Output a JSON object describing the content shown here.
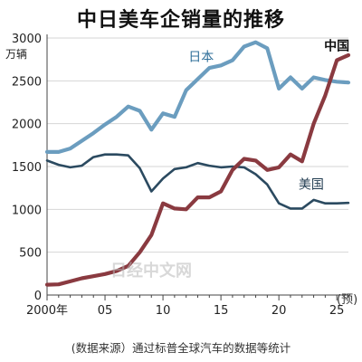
{
  "chart_data": {
    "type": "line",
    "title": "中日美车企销量的推移",
    "ylabel": "万辆",
    "xlabel": "",
    "xlim": [
      2000,
      2026
    ],
    "ylim": [
      0,
      3000
    ],
    "y_ticks": [
      0,
      500,
      1000,
      1500,
      2000,
      2500,
      3000
    ],
    "x_ticks": [
      {
        "value": 2000,
        "label": "2000年"
      },
      {
        "value": 2005,
        "label": "05"
      },
      {
        "value": 2010,
        "label": "10"
      },
      {
        "value": 2015,
        "label": "15"
      },
      {
        "value": 2020,
        "label": "20"
      },
      {
        "value": 2025,
        "label": "25"
      }
    ],
    "grid": "horizontal",
    "annotation": "(预)",
    "series": [
      {
        "name": "日本",
        "color": "#6b9dbf",
        "x": [
          2000,
          2001,
          2002,
          2003,
          2004,
          2005,
          2006,
          2007,
          2008,
          2009,
          2010,
          2011,
          2012,
          2013,
          2014,
          2015,
          2016,
          2017,
          2018,
          2019,
          2020,
          2021,
          2022,
          2023,
          2024,
          2025,
          2026
        ],
        "y": [
          1670,
          1670,
          1710,
          1800,
          1890,
          1990,
          2080,
          2200,
          2150,
          1930,
          2120,
          2080,
          2390,
          2520,
          2650,
          2680,
          2740,
          2900,
          2950,
          2880,
          2410,
          2540,
          2410,
          2540,
          2510,
          2490,
          2480
        ]
      },
      {
        "name": "美国",
        "color": "#2b4a60",
        "x": [
          2000,
          2001,
          2002,
          2003,
          2004,
          2005,
          2006,
          2007,
          2008,
          2009,
          2010,
          2011,
          2012,
          2013,
          2014,
          2015,
          2016,
          2017,
          2018,
          2019,
          2020,
          2021,
          2022,
          2023,
          2024,
          2025,
          2026
        ],
        "y": [
          1570,
          1520,
          1490,
          1510,
          1610,
          1640,
          1640,
          1630,
          1480,
          1210,
          1360,
          1470,
          1490,
          1540,
          1510,
          1490,
          1500,
          1490,
          1410,
          1290,
          1070,
          1010,
          1010,
          1110,
          1070,
          1070,
          1075
        ]
      },
      {
        "name": "中国",
        "color": "#8a3a40",
        "x": [
          2000,
          2001,
          2002,
          2003,
          2004,
          2005,
          2006,
          2007,
          2008,
          2009,
          2010,
          2011,
          2012,
          2013,
          2014,
          2015,
          2016,
          2017,
          2018,
          2019,
          2020,
          2021,
          2022,
          2023,
          2024,
          2025,
          2026
        ],
        "y": [
          120,
          125,
          160,
          195,
          220,
          245,
          280,
          340,
          500,
          700,
          1070,
          1010,
          1000,
          1140,
          1140,
          1210,
          1460,
          1590,
          1570,
          1460,
          1490,
          1640,
          1560,
          2000,
          2330,
          2740,
          2800
        ]
      }
    ]
  },
  "source_note": "(数据来源）通过标普全球汽车的数据等统计",
  "watermark": "日经中文网"
}
